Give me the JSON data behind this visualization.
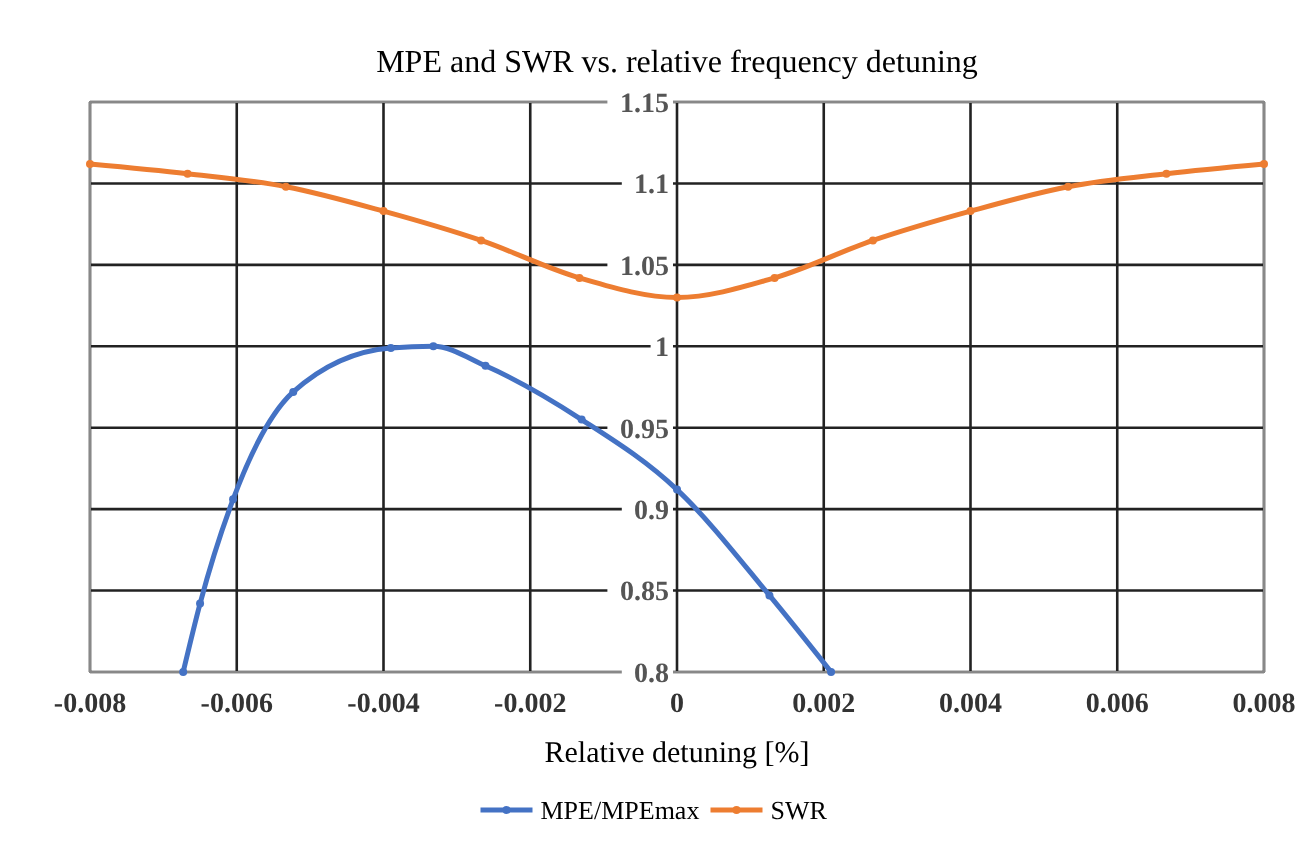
{
  "chart_data": {
    "type": "line",
    "title": "MPE and SWR vs. relative frequency detuning",
    "xlabel": "Relative detuning [%]",
    "xlim": [
      -0.008,
      0.008
    ],
    "xticks": [
      -0.008,
      -0.006,
      -0.004,
      -0.002,
      0,
      0.002,
      0.004,
      0.006,
      0.008
    ],
    "ylim": [
      0.8,
      1.15
    ],
    "yticks": [
      0.8,
      0.85,
      0.9,
      0.95,
      1,
      1.05,
      1.1,
      1.15
    ],
    "grid": true,
    "legend": "bottom",
    "marker": "circle",
    "line_style": "solid",
    "series": [
      {
        "name": "MPE/MPEmax",
        "color": "#4472c4",
        "x": [
          -0.00673,
          -0.0065,
          -0.00605,
          -0.00523,
          -0.0039,
          -0.00332,
          -0.00261,
          -0.0013,
          0,
          0.00126,
          0.0021
        ],
        "values": [
          0.8,
          0.842,
          0.906,
          0.972,
          0.999,
          1.0,
          0.988,
          0.955,
          0.912,
          0.847,
          0.8
        ]
      },
      {
        "name": "SWR",
        "color": "#ed7d31",
        "x": [
          -0.008,
          -0.00667,
          -0.00533,
          -0.004,
          -0.00267,
          -0.00133,
          0,
          0.00133,
          0.00267,
          0.004,
          0.00533,
          0.00667,
          0.008
        ],
        "values": [
          1.112,
          1.106,
          1.098,
          1.083,
          1.065,
          1.042,
          1.03,
          1.042,
          1.065,
          1.083,
          1.098,
          1.106,
          1.112
        ]
      }
    ]
  }
}
